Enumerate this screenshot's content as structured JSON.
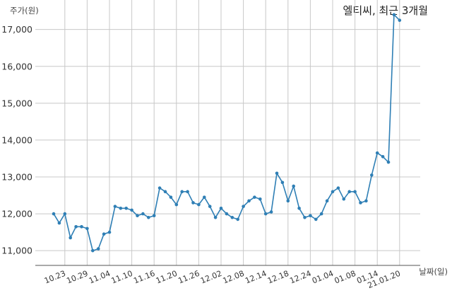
{
  "chart_data": {
    "type": "line",
    "title": "엘티씨, 최근 3개월",
    "ylabel": "주가(원)",
    "xlabel": "날짜(일)",
    "ylim": [
      10600,
      17800
    ],
    "yticks": [
      11000,
      12000,
      13000,
      14000,
      15000,
      16000,
      17000
    ],
    "ytick_labels": [
      "11,000",
      "12,000",
      "13,000",
      "14,000",
      "15,000",
      "16,000",
      "17,000"
    ],
    "xtick_labels": [
      "10.23",
      "10.29",
      "11.04",
      "11.10",
      "11.16",
      "11.20",
      "11.26",
      "12.02",
      "12.08",
      "12.14",
      "12.18",
      "12.24",
      "01.04",
      "01.08",
      "01.14",
      "21.01.20"
    ],
    "xtick_index": [
      2,
      6,
      10,
      14,
      18,
      22,
      26,
      30,
      34,
      38,
      42,
      46,
      50,
      54,
      58,
      62
    ],
    "grid": true,
    "series": [
      {
        "color": "#2f7fb5",
        "values": [
          12000,
          11750,
          12000,
          11350,
          11650,
          11650,
          11600,
          11000,
          11050,
          11450,
          11500,
          12200,
          12150,
          12150,
          12100,
          11950,
          12000,
          11900,
          11950,
          12700,
          12600,
          12450,
          12250,
          12600,
          12600,
          12300,
          12250,
          12450,
          12200,
          11900,
          12150,
          12000,
          11900,
          11850,
          12200,
          12350,
          12450,
          12400,
          12000,
          12050,
          13100,
          12850,
          12350,
          12750,
          12150,
          11900,
          11950,
          11850,
          12000,
          12350,
          12600,
          12700,
          12400,
          12600,
          12600,
          12300,
          12350,
          13050,
          13650,
          13550,
          13400,
          17400,
          17250
        ]
      }
    ]
  }
}
